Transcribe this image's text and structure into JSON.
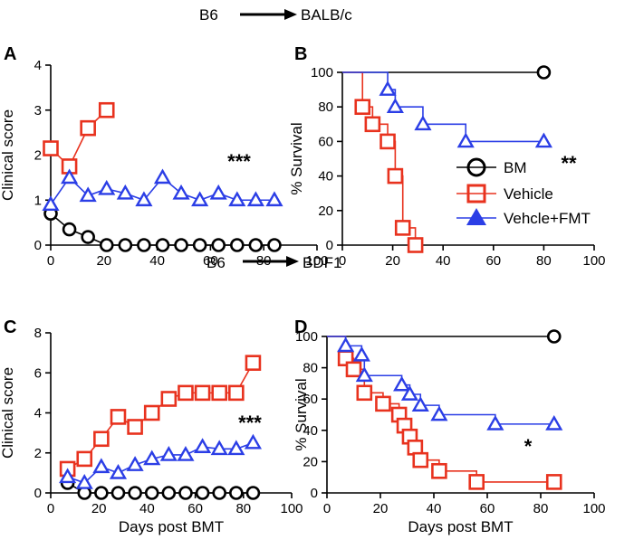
{
  "header_top": {
    "from": "B6",
    "to": "BALB/c"
  },
  "header_mid": {
    "from": "B6",
    "to": "BDF1"
  },
  "colors": {
    "bm": "#000000",
    "vehicle": "#e8321e",
    "fmt": "#2b3ee6"
  },
  "legend": {
    "items": [
      "BM",
      "Vehicle",
      "Vehcle+FMT"
    ]
  },
  "chart_data": [
    {
      "panel": "A",
      "type": "line",
      "ylabel": "Clinical score",
      "xlabel": "",
      "xlim": [
        0,
        100
      ],
      "ylim": [
        0,
        4
      ],
      "xticks": [
        0,
        20,
        40,
        60,
        80,
        100
      ],
      "yticks": [
        0,
        1,
        2,
        3,
        4
      ],
      "significance": "***",
      "series": [
        {
          "key": "bm",
          "marker": "circle",
          "x": [
            0,
            7,
            14,
            21,
            28,
            35,
            42,
            49,
            56,
            63,
            70,
            77,
            84
          ],
          "y": [
            0.7,
            0.35,
            0.18,
            0,
            0,
            0,
            0,
            0,
            0,
            0,
            0,
            0,
            0
          ]
        },
        {
          "key": "vehicle",
          "marker": "square",
          "x": [
            0,
            7,
            14,
            21
          ],
          "y": [
            2.15,
            1.75,
            2.6,
            3.0
          ]
        },
        {
          "key": "fmt",
          "marker": "triangle",
          "x": [
            0,
            7,
            14,
            21,
            28,
            35,
            42,
            49,
            56,
            63,
            70,
            77,
            84
          ],
          "y": [
            0.9,
            1.5,
            1.1,
            1.25,
            1.15,
            1.0,
            1.5,
            1.15,
            1.0,
            1.15,
            1.0,
            1.0,
            1.0
          ]
        }
      ]
    },
    {
      "panel": "B",
      "type": "line",
      "ylabel": "% Survival",
      "xlabel": "",
      "xlim": [
        0,
        100
      ],
      "ylim": [
        0,
        100
      ],
      "xticks": [
        0,
        20,
        40,
        60,
        80,
        100
      ],
      "yticks": [
        0,
        20,
        40,
        60,
        80,
        100
      ],
      "significance": "**",
      "series": [
        {
          "key": "bm",
          "marker": "circle",
          "x": [
            0,
            80
          ],
          "y": [
            100,
            100
          ],
          "markers": [
            [
              80,
              100
            ]
          ]
        },
        {
          "key": "vehicle",
          "marker": "square",
          "x": [
            0,
            8,
            8,
            12,
            12,
            18,
            18,
            21,
            21,
            24,
            24,
            29,
            29
          ],
          "y": [
            100,
            100,
            80,
            80,
            70,
            70,
            60,
            60,
            40,
            40,
            10,
            10,
            0
          ],
          "markers": [
            [
              8,
              80
            ],
            [
              12,
              70
            ],
            [
              18,
              60
            ],
            [
              21,
              40
            ],
            [
              24,
              10
            ],
            [
              29,
              0
            ]
          ]
        },
        {
          "key": "fmt",
          "marker": "triangle",
          "x": [
            0,
            18,
            18,
            21,
            21,
            32,
            32,
            49,
            49,
            80
          ],
          "y": [
            100,
            100,
            90,
            90,
            80,
            80,
            70,
            70,
            60,
            60
          ],
          "markers": [
            [
              18,
              90
            ],
            [
              21,
              80
            ],
            [
              32,
              70
            ],
            [
              49,
              60
            ],
            [
              80,
              60
            ]
          ]
        }
      ]
    },
    {
      "panel": "C",
      "type": "line",
      "ylabel": "Clinical score",
      "xlabel": "Days post BMT",
      "xlim": [
        0,
        100
      ],
      "ylim": [
        0,
        8
      ],
      "xticks": [
        0,
        20,
        40,
        60,
        80,
        100
      ],
      "yticks": [
        0,
        2,
        4,
        6,
        8
      ],
      "significance": "***",
      "series": [
        {
          "key": "bm",
          "marker": "circle",
          "x": [
            7,
            14,
            21,
            28,
            35,
            42,
            49,
            56,
            63,
            70,
            77,
            84
          ],
          "y": [
            0.5,
            0,
            0,
            0,
            0,
            0,
            0,
            0,
            0,
            0,
            0,
            0
          ]
        },
        {
          "key": "vehicle",
          "marker": "square",
          "x": [
            7,
            14,
            21,
            28,
            35,
            42,
            49,
            56,
            63,
            70,
            77,
            84
          ],
          "y": [
            1.2,
            1.7,
            2.7,
            3.8,
            3.3,
            4.0,
            4.7,
            5.0,
            5.0,
            5.0,
            5.0,
            6.5
          ]
        },
        {
          "key": "fmt",
          "marker": "triangle",
          "x": [
            7,
            14,
            21,
            28,
            35,
            42,
            49,
            56,
            63,
            70,
            77,
            84
          ],
          "y": [
            0.8,
            0.5,
            1.3,
            1.0,
            1.4,
            1.7,
            1.9,
            1.9,
            2.3,
            2.2,
            2.2,
            2.5
          ]
        }
      ]
    },
    {
      "panel": "D",
      "type": "line",
      "ylabel": "% Survival",
      "xlabel": "Days post BMT",
      "xlim": [
        0,
        100
      ],
      "ylim": [
        0,
        100
      ],
      "xticks": [
        0,
        20,
        40,
        60,
        80,
        100
      ],
      "yticks": [
        0,
        20,
        40,
        60,
        80,
        100
      ],
      "significance": "*",
      "series": [
        {
          "key": "bm",
          "marker": "circle",
          "x": [
            0,
            85
          ],
          "y": [
            100,
            100
          ],
          "markers": [
            [
              85,
              100
            ]
          ]
        },
        {
          "key": "vehicle",
          "marker": "square",
          "x": [
            0,
            7,
            7,
            10,
            10,
            14,
            14,
            21,
            21,
            27,
            27,
            29,
            29,
            31,
            31,
            33,
            33,
            35,
            35,
            42,
            42,
            56,
            56,
            85
          ],
          "y": [
            100,
            100,
            86,
            86,
            79,
            79,
            64,
            64,
            57,
            57,
            50,
            50,
            43,
            43,
            36,
            36,
            29,
            29,
            21,
            21,
            14,
            14,
            7,
            7
          ],
          "markers": [
            [
              7,
              86
            ],
            [
              10,
              79
            ],
            [
              14,
              64
            ],
            [
              21,
              57
            ],
            [
              27,
              50
            ],
            [
              29,
              43
            ],
            [
              31,
              36
            ],
            [
              33,
              29
            ],
            [
              35,
              21
            ],
            [
              42,
              14
            ],
            [
              56,
              7
            ],
            [
              85,
              7
            ]
          ]
        },
        {
          "key": "fmt",
          "marker": "triangle",
          "x": [
            0,
            7,
            7,
            13,
            13,
            14,
            14,
            28,
            28,
            31,
            31,
            35,
            35,
            42,
            42,
            63,
            63,
            85
          ],
          "y": [
            100,
            100,
            94,
            94,
            88,
            88,
            75,
            75,
            69,
            69,
            63,
            63,
            56,
            56,
            50,
            50,
            44,
            44
          ],
          "markers": [
            [
              7,
              94
            ],
            [
              13,
              88
            ],
            [
              14,
              75
            ],
            [
              28,
              69
            ],
            [
              31,
              63
            ],
            [
              35,
              56
            ],
            [
              42,
              50
            ],
            [
              63,
              44
            ],
            [
              85,
              44
            ]
          ]
        }
      ]
    }
  ]
}
